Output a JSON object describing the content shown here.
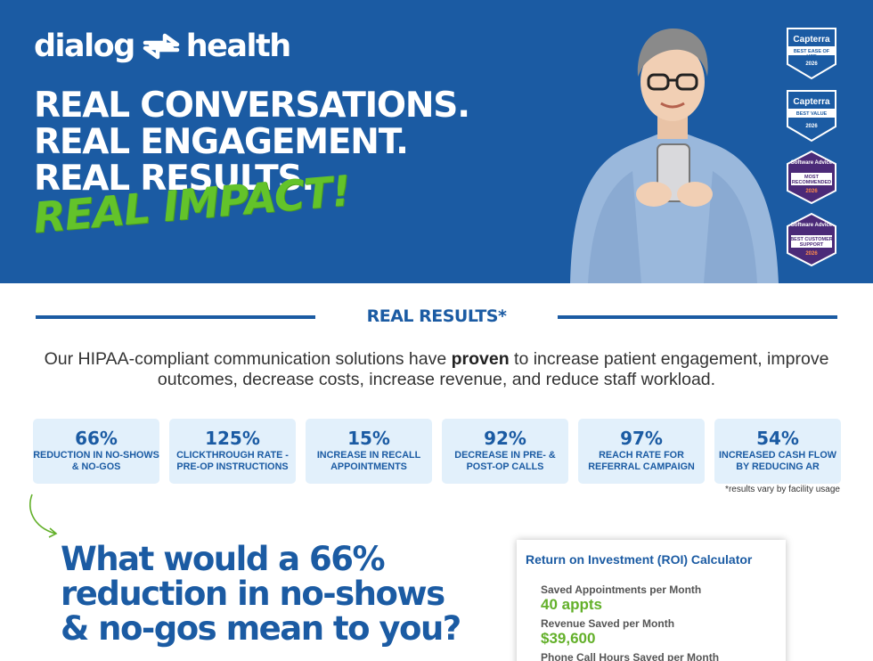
{
  "brand": {
    "word_left": "dialog",
    "word_right": "health"
  },
  "headline": [
    "REAL CONVERSATIONS.",
    "REAL ENGAGEMENT.",
    "REAL RESULTS."
  ],
  "impact": "REAL IMPACT!",
  "badges": [
    {
      "title": "Capterra",
      "sub": "BEST EASE OF USE",
      "year": "2026",
      "color": "#1b5ba3"
    },
    {
      "title": "Capterra",
      "sub": "BEST VALUE",
      "year": "2026",
      "color": "#1b5ba3"
    },
    {
      "title": "Software Advice",
      "sub": "MOST RECOMMENDED",
      "year": "2026",
      "color": "#4b2a78"
    },
    {
      "title": "Software Advice",
      "sub": "BEST CUSTOMER SUPPORT",
      "year": "2026",
      "color": "#4b2a78"
    }
  ],
  "results": {
    "title": "REAL RESULTS*",
    "intro_before": "Our HIPAA-compliant communication solutions have ",
    "intro_bold": "proven",
    "intro_after": " to increase patient engagement, improve outcomes, decrease costs, increase revenue, and reduce staff workload.",
    "stats": [
      {
        "value": "66%",
        "label": "REDUCTION IN NO-SHOWS & NO-GOS"
      },
      {
        "value": "125%",
        "label": "CLICKTHROUGH RATE - PRE-OP INSTRUCTIONS"
      },
      {
        "value": "15%",
        "label": "INCREASE IN RECALL APPOINTMENTS"
      },
      {
        "value": "92%",
        "label": "DECREASE IN PRE- & POST-OP CALLS"
      },
      {
        "value": "97%",
        "label": "REACH RATE FOR REFERRAL CAMPAIGN"
      },
      {
        "value": "54%",
        "label": "INCREASED CASH FLOW BY REDUCING AR"
      }
    ],
    "disclaimer": "*results vary by facility usage"
  },
  "question": [
    "What would a 66%",
    "reduction in no-shows",
    "& no-gos mean to you?"
  ],
  "roi": {
    "title": "Return on Investment (ROI) Calculator",
    "items": [
      {
        "label": "Saved Appointments per Month",
        "value": "40 appts"
      },
      {
        "label": "Revenue Saved per Month",
        "value": "$39,600"
      },
      {
        "label": "Phone Call Hours Saved per Month",
        "value": ""
      }
    ]
  },
  "colors": {
    "brand_blue": "#1b5ba3",
    "accent_green": "#63c32a",
    "stat_bg": "#e2f0fb"
  }
}
